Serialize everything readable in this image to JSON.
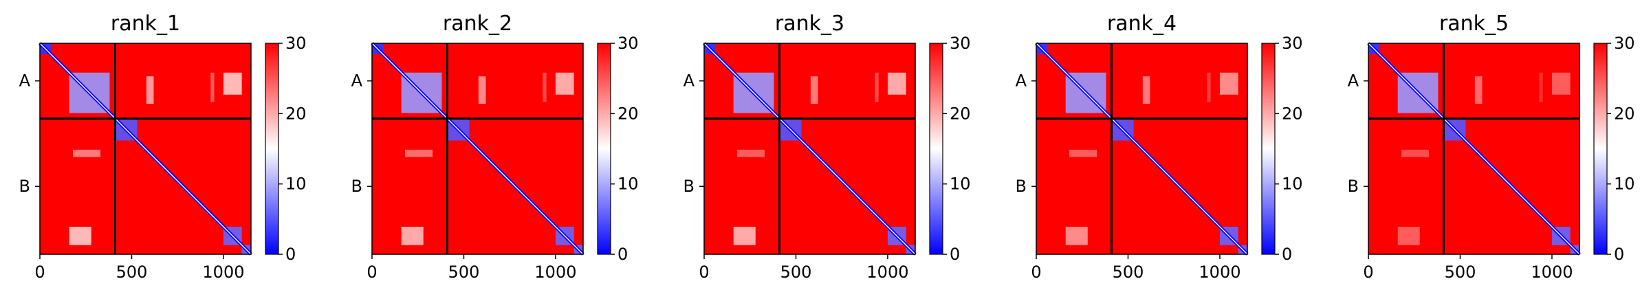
{
  "chart_data": {
    "type": "heatmap",
    "colorbar": {
      "min": 0,
      "max": 30,
      "ticks": [
        "0",
        "10",
        "20",
        "30"
      ],
      "colormap": [
        "#0000ff",
        "#ffffff",
        "#ff0000"
      ]
    },
    "axis": {
      "x_ticks": [
        "0",
        "500",
        "1000"
      ],
      "x_tick_values": [
        0,
        500,
        1000
      ],
      "x_max": 1150,
      "y_ticks": [
        "A",
        "B"
      ]
    },
    "chain_boundary": 410,
    "colors": {
      "background": "#ff0000",
      "low": "#0000ff",
      "mid": "#ffffff",
      "divider": "#000000"
    },
    "panels": [
      {
        "title": "rank_1",
        "regions": [
          {
            "x": [
              0,
              60
            ],
            "y": [
              0,
              60
            ],
            "v": 3
          },
          {
            "x": [
              160,
              380
            ],
            "y": [
              160,
              380
            ],
            "v": 9
          },
          {
            "x": [
              410,
              530
            ],
            "y": [
              410,
              530
            ],
            "v": 5
          },
          {
            "x": [
              1000,
              1100
            ],
            "y": [
              1000,
              1100
            ],
            "v": 6
          },
          {
            "x": [
              1100,
              1150
            ],
            "y": [
              1100,
              1150
            ],
            "v": 6
          },
          {
            "x": [
              1000,
              1100
            ],
            "y": [
              160,
              280
            ],
            "v": 18
          },
          {
            "x": [
              160,
              280
            ],
            "y": [
              1000,
              1100
            ],
            "v": 18
          },
          {
            "x": [
              580,
              620
            ],
            "y": [
              180,
              330
            ],
            "v": 20
          },
          {
            "x": [
              180,
              330
            ],
            "y": [
              580,
              620
            ],
            "v": 22
          },
          {
            "x": [
              930,
              950
            ],
            "y": [
              160,
              320
            ],
            "v": 24
          }
        ]
      },
      {
        "title": "rank_2",
        "regions": [
          {
            "x": [
              0,
              60
            ],
            "y": [
              0,
              60
            ],
            "v": 3
          },
          {
            "x": [
              160,
              380
            ],
            "y": [
              160,
              380
            ],
            "v": 9
          },
          {
            "x": [
              410,
              530
            ],
            "y": [
              410,
              530
            ],
            "v": 5
          },
          {
            "x": [
              1000,
              1100
            ],
            "y": [
              1000,
              1100
            ],
            "v": 6
          },
          {
            "x": [
              1100,
              1150
            ],
            "y": [
              1100,
              1150
            ],
            "v": 6
          },
          {
            "x": [
              1000,
              1100
            ],
            "y": [
              160,
              280
            ],
            "v": 19
          },
          {
            "x": [
              160,
              280
            ],
            "y": [
              1000,
              1100
            ],
            "v": 19
          },
          {
            "x": [
              580,
              620
            ],
            "y": [
              180,
              330
            ],
            "v": 21
          },
          {
            "x": [
              180,
              330
            ],
            "y": [
              580,
              620
            ],
            "v": 23
          },
          {
            "x": [
              930,
              950
            ],
            "y": [
              160,
              320
            ],
            "v": 25
          }
        ]
      },
      {
        "title": "rank_3",
        "regions": [
          {
            "x": [
              0,
              60
            ],
            "y": [
              0,
              60
            ],
            "v": 3
          },
          {
            "x": [
              160,
              380
            ],
            "y": [
              160,
              380
            ],
            "v": 9
          },
          {
            "x": [
              410,
              530
            ],
            "y": [
              410,
              530
            ],
            "v": 5
          },
          {
            "x": [
              1000,
              1100
            ],
            "y": [
              1000,
              1100
            ],
            "v": 6
          },
          {
            "x": [
              1100,
              1150
            ],
            "y": [
              1100,
              1150
            ],
            "v": 6
          },
          {
            "x": [
              1000,
              1100
            ],
            "y": [
              160,
              280
            ],
            "v": 19
          },
          {
            "x": [
              160,
              280
            ],
            "y": [
              1000,
              1100
            ],
            "v": 19
          },
          {
            "x": [
              580,
              620
            ],
            "y": [
              180,
              330
            ],
            "v": 22
          },
          {
            "x": [
              180,
              330
            ],
            "y": [
              580,
              620
            ],
            "v": 24
          },
          {
            "x": [
              930,
              950
            ],
            "y": [
              160,
              320
            ],
            "v": 25
          }
        ]
      },
      {
        "title": "rank_4",
        "regions": [
          {
            "x": [
              0,
              60
            ],
            "y": [
              0,
              60
            ],
            "v": 3
          },
          {
            "x": [
              160,
              380
            ],
            "y": [
              160,
              380
            ],
            "v": 9
          },
          {
            "x": [
              410,
              530
            ],
            "y": [
              410,
              530
            ],
            "v": 5
          },
          {
            "x": [
              1000,
              1100
            ],
            "y": [
              1000,
              1100
            ],
            "v": 6
          },
          {
            "x": [
              1100,
              1150
            ],
            "y": [
              1100,
              1150
            ],
            "v": 6
          },
          {
            "x": [
              1000,
              1100
            ],
            "y": [
              160,
              280
            ],
            "v": 21
          },
          {
            "x": [
              160,
              280
            ],
            "y": [
              1000,
              1100
            ],
            "v": 21
          },
          {
            "x": [
              580,
              620
            ],
            "y": [
              180,
              330
            ],
            "v": 22
          },
          {
            "x": [
              180,
              330
            ],
            "y": [
              580,
              620
            ],
            "v": 24
          },
          {
            "x": [
              930,
              950
            ],
            "y": [
              160,
              320
            ],
            "v": 26
          }
        ]
      },
      {
        "title": "rank_5",
        "regions": [
          {
            "x": [
              0,
              60
            ],
            "y": [
              0,
              60
            ],
            "v": 3
          },
          {
            "x": [
              160,
              380
            ],
            "y": [
              160,
              380
            ],
            "v": 9
          },
          {
            "x": [
              410,
              530
            ],
            "y": [
              410,
              530
            ],
            "v": 5
          },
          {
            "x": [
              1000,
              1100
            ],
            "y": [
              1000,
              1100
            ],
            "v": 6
          },
          {
            "x": [
              1100,
              1150
            ],
            "y": [
              1100,
              1150
            ],
            "v": 6
          },
          {
            "x": [
              1000,
              1100
            ],
            "y": [
              160,
              280
            ],
            "v": 24
          },
          {
            "x": [
              160,
              280
            ],
            "y": [
              1000,
              1100
            ],
            "v": 24
          },
          {
            "x": [
              580,
              620
            ],
            "y": [
              180,
              330
            ],
            "v": 23
          },
          {
            "x": [
              180,
              330
            ],
            "y": [
              580,
              620
            ],
            "v": 25
          },
          {
            "x": [
              930,
              950
            ],
            "y": [
              160,
              320
            ],
            "v": 27
          }
        ]
      }
    ]
  }
}
